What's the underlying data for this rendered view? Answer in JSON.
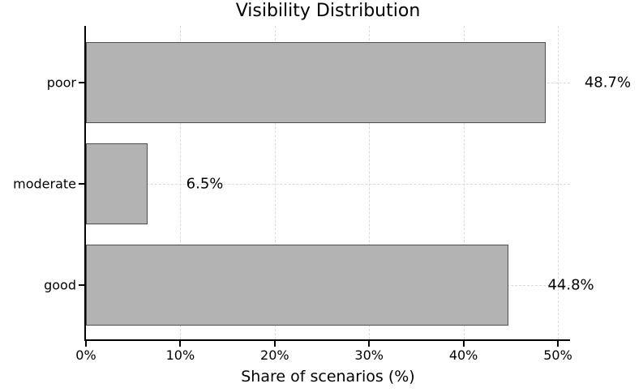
{
  "chart_data": {
    "type": "bar",
    "orientation": "horizontal",
    "title": "Visibility Distribution",
    "categories": [
      "poor",
      "moderate",
      "good"
    ],
    "values": [
      48.7,
      6.5,
      44.8
    ],
    "value_labels": [
      "48.7%",
      "6.5%",
      "44.8%"
    ],
    "xlabel": "Share of scenarios (%)",
    "ylabel": "",
    "xlim": [
      0,
      51.3
    ],
    "x_ticks": [
      0,
      10,
      20,
      30,
      40,
      50
    ],
    "x_tick_labels": [
      "0%",
      "10%",
      "20%",
      "30%",
      "40%",
      "50%"
    ],
    "grid": true,
    "legend": "none",
    "colors": {
      "bar_fill": "#b3b3b3",
      "bar_edge": "#4d4d4d",
      "grid": "#d9d9d9",
      "axis": "#000000",
      "text": "#000000",
      "background": "#ffffff"
    }
  }
}
